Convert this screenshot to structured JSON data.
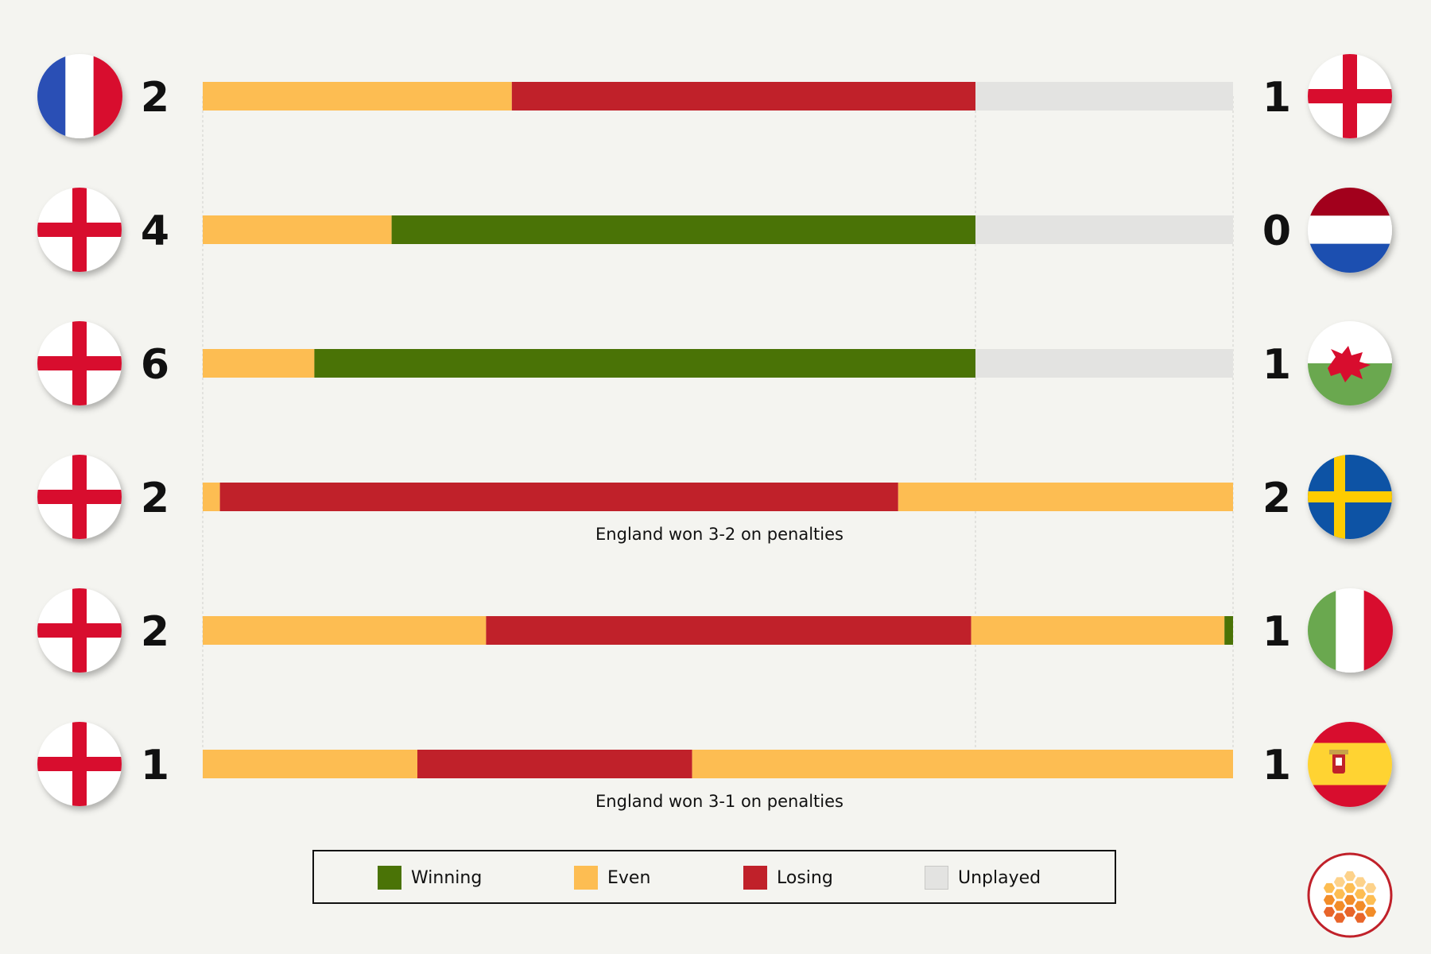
{
  "legend": {
    "items": [
      {
        "key": "winning",
        "label": "Winning",
        "color": "#4a7306"
      },
      {
        "key": "even",
        "label": "Even",
        "color": "#fdbd52"
      },
      {
        "key": "losing",
        "label": "Losing",
        "color": "#c0212a"
      },
      {
        "key": "unplayed",
        "label": "Unplayed",
        "color": "#e3e3e1"
      }
    ]
  },
  "chart_data": {
    "type": "bar",
    "orientation": "horizontal-stacked",
    "x_unit": "minutes",
    "x_range": [
      0,
      120
    ],
    "gridlines_minutes": [
      90
    ],
    "colors": {
      "winning": "#4a7306",
      "even": "#fdbd52",
      "losing": "#c0212a",
      "unplayed": "#e3e3e1"
    },
    "matches": [
      {
        "left_team": "France",
        "left_flag": "france-flag",
        "left_score": "2",
        "right_team": "England",
        "right_flag": "england-flag",
        "right_score": "1",
        "note": "",
        "segments": [
          {
            "state": "even",
            "minutes": 36
          },
          {
            "state": "losing",
            "minutes": 54
          },
          {
            "state": "unplayed",
            "minutes": 30
          }
        ]
      },
      {
        "left_team": "England",
        "left_flag": "england-flag",
        "left_score": "4",
        "right_team": "Netherlands",
        "right_flag": "netherlands-flag",
        "right_score": "0",
        "note": "",
        "segments": [
          {
            "state": "even",
            "minutes": 22
          },
          {
            "state": "winning",
            "minutes": 68
          },
          {
            "state": "unplayed",
            "minutes": 30
          }
        ]
      },
      {
        "left_team": "England",
        "left_flag": "england-flag",
        "left_score": "6",
        "right_team": "Wales",
        "right_flag": "wales-flag",
        "right_score": "1",
        "note": "",
        "segments": [
          {
            "state": "even",
            "minutes": 13
          },
          {
            "state": "winning",
            "minutes": 77
          },
          {
            "state": "unplayed",
            "minutes": 30
          }
        ]
      },
      {
        "left_team": "England",
        "left_flag": "england-flag",
        "left_score": "2",
        "right_team": "Sweden",
        "right_flag": "sweden-flag",
        "right_score": "2",
        "note": "England won 3-2 on penalties",
        "segments": [
          {
            "state": "even",
            "minutes": 2
          },
          {
            "state": "losing",
            "minutes": 79
          },
          {
            "state": "even",
            "minutes": 39
          }
        ]
      },
      {
        "left_team": "England",
        "left_flag": "england-flag",
        "left_score": "2",
        "right_team": "Italy",
        "right_flag": "italy-flag",
        "right_score": "1",
        "note": "",
        "segments": [
          {
            "state": "even",
            "minutes": 33
          },
          {
            "state": "losing",
            "minutes": 56.5
          },
          {
            "state": "even",
            "minutes": 29.5
          },
          {
            "state": "winning",
            "minutes": 1
          }
        ]
      },
      {
        "left_team": "England",
        "left_flag": "england-flag",
        "left_score": "1",
        "right_team": "Spain",
        "right_flag": "spain-flag",
        "right_score": "1",
        "note": "England won 3-1 on penalties",
        "segments": [
          {
            "state": "even",
            "minutes": 25
          },
          {
            "state": "losing",
            "minutes": 32
          },
          {
            "state": "even",
            "minutes": 63
          }
        ]
      }
    ]
  }
}
